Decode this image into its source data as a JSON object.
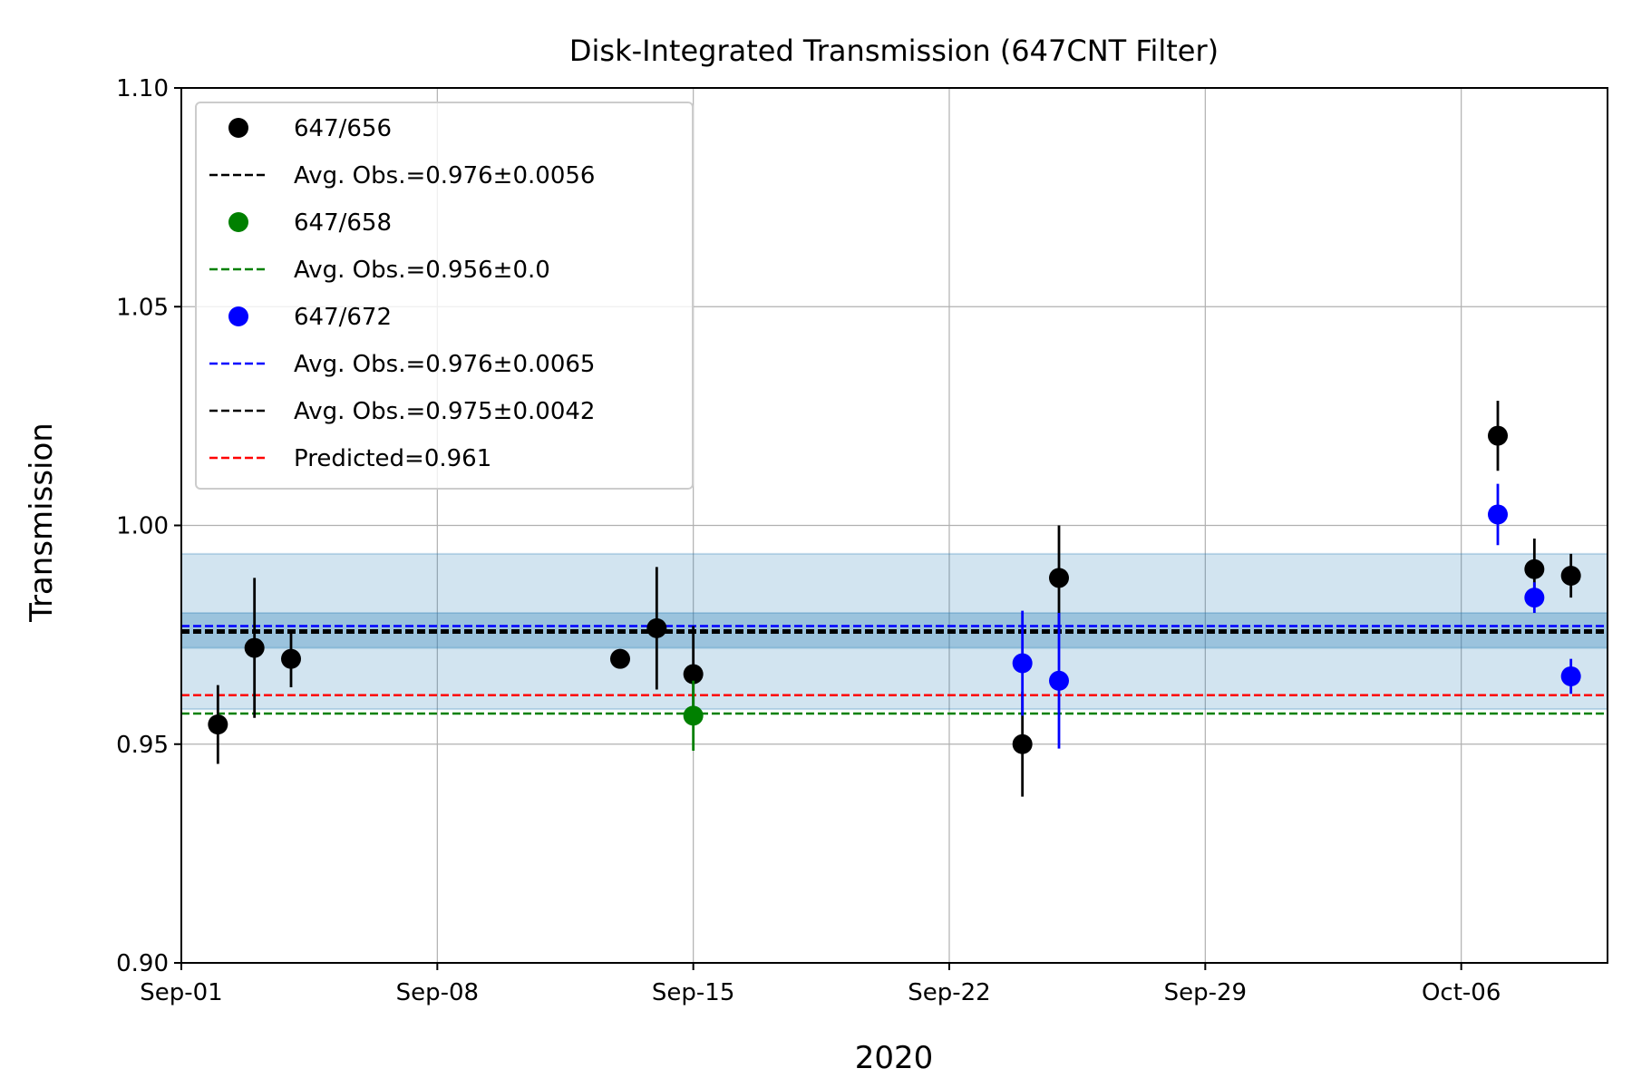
{
  "chart_data": {
    "type": "scatter",
    "title": "Disk-Integrated Transmission (647CNT Filter)",
    "xlabel": "2020",
    "ylabel": "Transmission",
    "xlim": [
      "2020-09-01",
      "2020-10-10"
    ],
    "ylim": [
      0.9,
      1.1
    ],
    "x_ticks": [
      {
        "date": "2020-09-01",
        "label": "Sep-01"
      },
      {
        "date": "2020-09-08",
        "label": "Sep-08"
      },
      {
        "date": "2020-09-15",
        "label": "Sep-15"
      },
      {
        "date": "2020-09-22",
        "label": "Sep-22"
      },
      {
        "date": "2020-09-29",
        "label": "Sep-29"
      },
      {
        "date": "2020-10-06",
        "label": "Oct-06"
      }
    ],
    "y_ticks": [
      {
        "value": 0.9,
        "label": "0.90"
      },
      {
        "value": 0.95,
        "label": "0.95"
      },
      {
        "value": 1.0,
        "label": "1.00"
      },
      {
        "value": 1.05,
        "label": "1.05"
      },
      {
        "value": 1.1,
        "label": "1.10"
      }
    ],
    "grid": true,
    "legend_position": "top-left",
    "bands": [
      {
        "ymin": 0.958,
        "ymax": 0.9935,
        "color": "#1f77b4",
        "opacity": 0.2
      },
      {
        "ymin": 0.972,
        "ymax": 0.98,
        "color": "#1f77b4",
        "opacity": 0.3
      }
    ],
    "series": [
      {
        "name": "647/656",
        "color": "#000000",
        "points": [
          {
            "x": "2020-09-02",
            "y": 0.9545,
            "err": 0.009
          },
          {
            "x": "2020-09-03",
            "y": 0.972,
            "err": 0.016
          },
          {
            "x": "2020-09-04",
            "y": 0.9695,
            "err": 0.0065
          },
          {
            "x": "2020-09-13",
            "y": 0.9695,
            "err": 0.002
          },
          {
            "x": "2020-09-14",
            "y": 0.9765,
            "err": 0.014
          },
          {
            "x": "2020-09-15",
            "y": 0.966,
            "err": 0.011
          },
          {
            "x": "2020-09-24",
            "y": 0.95,
            "err": 0.012
          },
          {
            "x": "2020-09-25",
            "y": 0.988,
            "err": 0.012
          },
          {
            "x": "2020-10-07",
            "y": 1.0205,
            "err": 0.008
          },
          {
            "x": "2020-10-08",
            "y": 0.99,
            "err": 0.007
          },
          {
            "x": "2020-10-09",
            "y": 0.9885,
            "err": 0.005
          }
        ]
      },
      {
        "name": "647/658",
        "color": "#008000",
        "points": [
          {
            "x": "2020-09-15",
            "y": 0.9565,
            "err": 0.008
          }
        ]
      },
      {
        "name": "647/672",
        "color": "#0000ff",
        "points": [
          {
            "x": "2020-09-24",
            "y": 0.9685,
            "err": 0.012
          },
          {
            "x": "2020-09-25",
            "y": 0.9645,
            "err": 0.0155
          },
          {
            "x": "2020-10-07",
            "y": 1.0025,
            "err": 0.007
          },
          {
            "x": "2020-10-08",
            "y": 0.9835,
            "err": 0.0035
          },
          {
            "x": "2020-10-09",
            "y": 0.9655,
            "err": 0.004
          }
        ]
      }
    ],
    "hlines": [
      {
        "label": "Avg. Obs.=0.976±0.0056",
        "y": 0.976,
        "color": "#000000"
      },
      {
        "label": "Avg. Obs.=0.956±0.0",
        "y": 0.957,
        "color": "#008000"
      },
      {
        "label": "Avg. Obs.=0.976±0.0065",
        "y": 0.977,
        "color": "#0000ff"
      },
      {
        "label": "Avg. Obs.=0.975±0.0042",
        "y": 0.9755,
        "color": "#000000"
      },
      {
        "label": "Predicted=0.961",
        "y": 0.9612,
        "color": "#ff0000"
      }
    ],
    "legend": [
      {
        "kind": "marker",
        "label": "647/656",
        "color": "#000000"
      },
      {
        "kind": "line",
        "label": "Avg. Obs.=0.976±0.0056",
        "color": "#000000"
      },
      {
        "kind": "marker",
        "label": "647/658",
        "color": "#008000"
      },
      {
        "kind": "line",
        "label": "Avg. Obs.=0.956±0.0",
        "color": "#008000"
      },
      {
        "kind": "marker",
        "label": "647/672",
        "color": "#0000ff"
      },
      {
        "kind": "line",
        "label": "Avg. Obs.=0.976±0.0065",
        "color": "#0000ff"
      },
      {
        "kind": "line",
        "label": "Avg. Obs.=0.975±0.0042",
        "color": "#000000"
      },
      {
        "kind": "line",
        "label": "Predicted=0.961",
        "color": "#ff0000"
      }
    ]
  }
}
